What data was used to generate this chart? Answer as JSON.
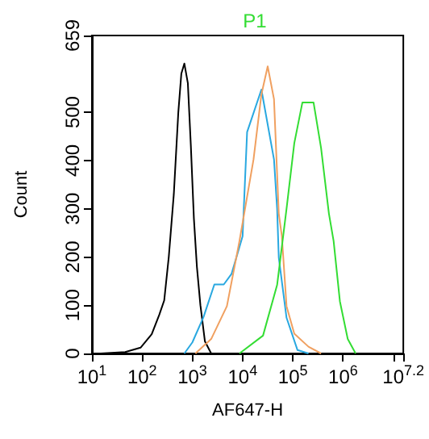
{
  "chart_data": {
    "type": "line",
    "title": "P1",
    "xlabel": "AF647-H",
    "ylabel": "Count",
    "log": "x",
    "grid": false,
    "marker": "none",
    "line_style": "solid",
    "xlim": [
      10,
      15848932
    ],
    "xticks": [
      {
        "value": 10,
        "label": "10$^{1}$"
      },
      {
        "value": 100,
        "label": "10$^{2}$"
      },
      {
        "value": 1000,
        "label": "10$^{3}$"
      },
      {
        "value": 10000,
        "label": "10$^{4}$"
      },
      {
        "value": 100000,
        "label": "10$^{5}$"
      },
      {
        "value": 1000000,
        "label": "10$^{6}$"
      },
      {
        "value": 10000000,
        "label": null
      },
      {
        "value": 15848932,
        "label": "10$^{7.2}$"
      }
    ],
    "ylim": [
      0,
      659
    ],
    "yticks": [
      0,
      100,
      200,
      300,
      400,
      500,
      659
    ],
    "series": [
      {
        "color": "#000000",
        "x": [
          15,
          46,
          93,
          155,
          219,
          275,
          339,
          427,
          525,
          603,
          692,
          813,
          933,
          1072,
          1230,
          1445,
          1778,
          2371
        ],
        "values": [
          0,
          3,
          12,
          40,
          80,
          110,
          200,
          330,
          500,
          580,
          601,
          560,
          430,
          280,
          180,
          100,
          25,
          0
        ]
      },
      {
        "color": "#29a8e0",
        "x": [
          692,
          1000,
          1660,
          2740,
          4220,
          6030,
          10000,
          12300,
          23700,
          42200,
          48700,
          52500,
          75000,
          124000,
          205000
        ],
        "values": [
          0,
          23,
          75,
          143,
          143,
          165,
          243,
          459,
          547,
          402,
          300,
          199,
          74,
          7,
          0
        ]
      },
      {
        "color": "#f0a060",
        "x": [
          1150,
          2370,
          4870,
          8660,
          16500,
          23700,
          31600,
          42200,
          52500,
          60500,
          75000,
          107000,
          205000,
          365000
        ],
        "values": [
          0,
          30,
          98,
          233,
          402,
          537,
          595,
          527,
          290,
          243,
          98,
          41,
          14,
          0
        ]
      },
      {
        "color": "#33dd33",
        "x": [
          8660,
          25500,
          48700,
          75000,
          107000,
          155000,
          259000,
          365000,
          523000,
          649000,
          866000,
          1240000,
          1780000
        ],
        "values": [
          0,
          37,
          142,
          300,
          436,
          520,
          520,
          426,
          290,
          233,
          108,
          30,
          0
        ]
      }
    ]
  }
}
